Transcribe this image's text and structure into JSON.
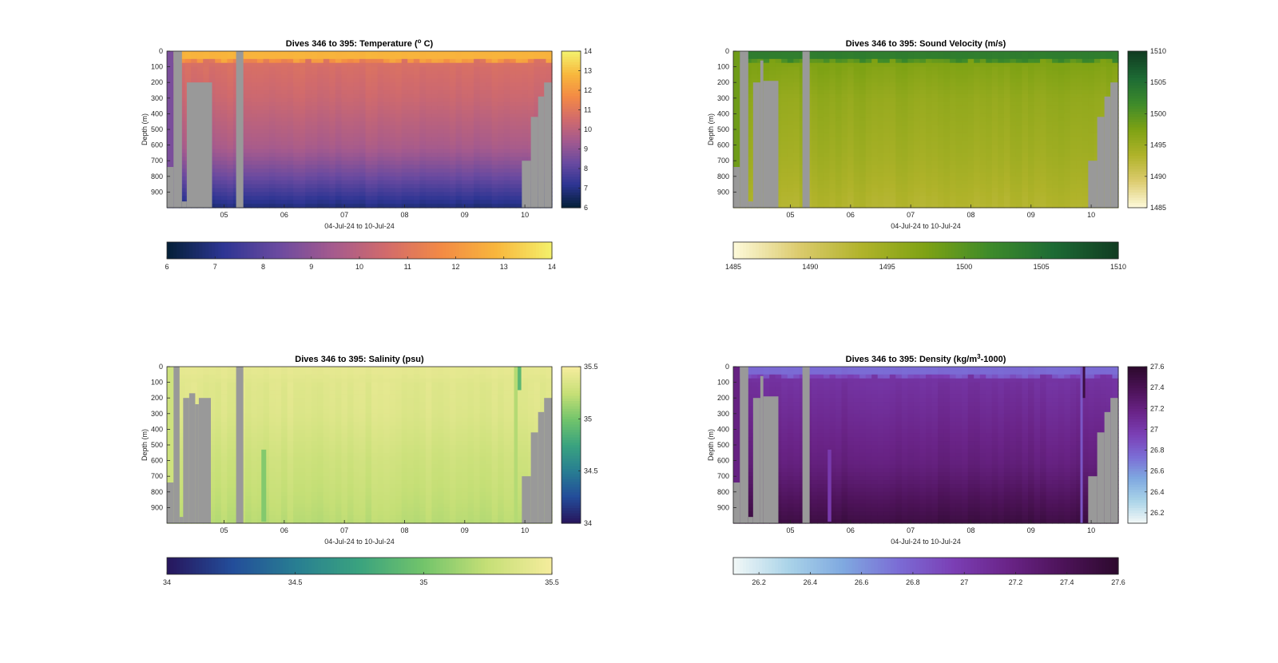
{
  "figure": {
    "colors": {
      "mask_gray": "#999999",
      "axis_color": "#262626"
    }
  },
  "chart_data": [
    {
      "type": "heatmap",
      "title_main": "Dives 346 to 395: Temperature (",
      "title_sup": "o",
      "title_tail": " C)",
      "ylabel": "Depth (m)",
      "xlabel": "04-Jul-24 to 10-Jul-24",
      "x_ticks": [
        "05",
        "06",
        "07",
        "08",
        "09",
        "10"
      ],
      "x_tick_pos": [
        5,
        6,
        7,
        8,
        9,
        10
      ],
      "xlim": [
        4.05,
        10.45
      ],
      "y_ticks": [
        "0",
        "100",
        "200",
        "300",
        "400",
        "500",
        "600",
        "700",
        "800",
        "900"
      ],
      "ylim": [
        0,
        1000
      ],
      "colormap": [
        "#05203a",
        "#2d3593",
        "#6a4aa0",
        "#a45a8e",
        "#d26b6b",
        "#f38a45",
        "#f8b63c",
        "#f4ef6a"
      ],
      "clim": [
        6,
        14
      ],
      "cb_vertical_ticks": [
        "6",
        "7",
        "8",
        "9",
        "10",
        "11",
        "12",
        "13",
        "14"
      ],
      "cb_horizontal_ticks": [
        "6",
        "7",
        "8",
        "9",
        "10",
        "11",
        "12",
        "13",
        "14"
      ],
      "profile": {
        "surface": 12.8,
        "mixed_layer": 50,
        "transition": 10.8,
        "at300": 10.4,
        "at600": 9.6,
        "at1000": 6.8
      },
      "nan_regions": [
        [
          4.16,
          4.3,
          0,
          1000
        ],
        [
          4.3,
          4.38,
          960,
          1000
        ],
        [
          4.38,
          4.8,
          200,
          1000
        ],
        [
          5.2,
          5.32,
          0,
          1000
        ],
        [
          9.95,
          10.1,
          700,
          1000
        ],
        [
          10.1,
          10.22,
          420,
          1000
        ],
        [
          10.22,
          10.32,
          290,
          1000
        ],
        [
          10.32,
          10.45,
          200,
          1000
        ]
      ],
      "edge_value_left": 8.6,
      "edge_nan_left": [
        4.05,
        4.16,
        740,
        1000
      ]
    },
    {
      "type": "heatmap",
      "title_main": "Dives 346 to 395: Sound Velocity (m/s)",
      "title_sup": "",
      "title_tail": "",
      "ylabel": "Depth (m)",
      "xlabel": "04-Jul-24 to 10-Jul-24",
      "x_ticks": [
        "05",
        "06",
        "07",
        "08",
        "09",
        "10"
      ],
      "x_tick_pos": [
        5,
        6,
        7,
        8,
        9,
        10
      ],
      "xlim": [
        4.05,
        10.45
      ],
      "y_ticks": [
        "0",
        "100",
        "200",
        "300",
        "400",
        "500",
        "600",
        "700",
        "800",
        "900"
      ],
      "ylim": [
        0,
        1000
      ],
      "colormap": [
        "#fdf9d8",
        "#dccb6e",
        "#b0b32a",
        "#7ea214",
        "#3e8b2a",
        "#1d6b34",
        "#113d22"
      ],
      "clim": [
        1485,
        1510
      ],
      "cb_vertical_ticks": [
        "1485",
        "1490",
        "1495",
        "1500",
        "1505",
        "1510"
      ],
      "cb_horizontal_ticks": [
        "1485",
        "1490",
        "1495",
        "1500",
        "1505",
        "1510"
      ],
      "profile": {
        "surface": 1503.5,
        "mixed_layer": 50,
        "transition": 1497.5,
        "at300": 1495.8,
        "at600": 1494.8,
        "at1000": 1493.0
      },
      "nan_regions": [
        [
          4.16,
          4.3,
          0,
          1000
        ],
        [
          4.3,
          4.38,
          960,
          1000
        ],
        [
          4.38,
          4.5,
          200,
          1000
        ],
        [
          4.5,
          4.55,
          60,
          1000
        ],
        [
          4.55,
          4.8,
          190,
          1000
        ],
        [
          5.2,
          5.32,
          0,
          1000
        ],
        [
          9.95,
          10.1,
          700,
          1000
        ],
        [
          10.1,
          10.22,
          420,
          1000
        ],
        [
          10.22,
          10.32,
          290,
          1000
        ],
        [
          10.32,
          10.45,
          200,
          1000
        ]
      ],
      "edge_value_left": 1498.5,
      "edge_nan_left": [
        4.05,
        4.16,
        740,
        1000
      ]
    },
    {
      "type": "heatmap",
      "title_main": "Dives 346 to 395: Salinity (psu)",
      "title_sup": "",
      "title_tail": "",
      "ylabel": "Depth (m)",
      "xlabel": "04-Jul-24 to 10-Jul-24",
      "x_ticks": [
        "05",
        "06",
        "07",
        "08",
        "09",
        "10"
      ],
      "x_tick_pos": [
        5,
        6,
        7,
        8,
        9,
        10
      ],
      "xlim": [
        4.05,
        10.45
      ],
      "y_ticks": [
        "0",
        "100",
        "200",
        "300",
        "400",
        "500",
        "600",
        "700",
        "800",
        "900"
      ],
      "ylim": [
        0,
        1000
      ],
      "colormap": [
        "#27175e",
        "#234d9a",
        "#287e92",
        "#3aa37f",
        "#72c46b",
        "#c5df76",
        "#f4ec9c"
      ],
      "clim": [
        34,
        35.5
      ],
      "cb_vertical_ticks": [
        "34",
        "34.5",
        "35",
        "35.5"
      ],
      "cb_vertical_vals": [
        34,
        34.5,
        35,
        35.5
      ],
      "cb_horizontal_ticks": [
        "34",
        "34.5",
        "35",
        "35.5"
      ],
      "cb_horizontal_vals": [
        34,
        34.5,
        35,
        35.5
      ],
      "profile": {
        "surface": 35.42,
        "mixed_layer": 50,
        "transition": 35.4,
        "at300": 35.38,
        "at600": 35.3,
        "at1000": 35.22
      },
      "nan_regions": [
        [
          4.16,
          4.26,
          0,
          1000
        ],
        [
          4.26,
          4.32,
          960,
          1000
        ],
        [
          4.32,
          4.42,
          200,
          1000
        ],
        [
          4.42,
          4.52,
          170,
          1000
        ],
        [
          4.52,
          4.58,
          240,
          1000
        ],
        [
          4.58,
          4.78,
          200,
          1000
        ],
        [
          5.2,
          5.32,
          0,
          1000
        ],
        [
          9.95,
          10.1,
          700,
          1000
        ],
        [
          10.1,
          10.22,
          420,
          1000
        ],
        [
          10.22,
          10.32,
          290,
          1000
        ],
        [
          10.32,
          10.45,
          200,
          1000
        ]
      ],
      "edge_value_left": 35.3,
      "edge_nan_left": [
        4.05,
        4.16,
        740,
        1000
      ],
      "anomaly_columns": [
        [
          5.62,
          5.7,
          530,
          990,
          35.05
        ],
        [
          9.82,
          9.88,
          0,
          1000,
          35.2
        ],
        [
          9.88,
          9.94,
          0,
          150,
          34.9
        ]
      ]
    },
    {
      "type": "heatmap",
      "title_main": "Dives 346 to 395: Density (kg/m",
      "title_sup": "3",
      "title_tail": "-1000)",
      "ylabel": "Depth (m)",
      "xlabel": "04-Jul-24 to 10-Jul-24",
      "x_ticks": [
        "05",
        "06",
        "07",
        "08",
        "09",
        "10"
      ],
      "x_tick_pos": [
        5,
        6,
        7,
        8,
        9,
        10
      ],
      "xlim": [
        4.05,
        10.45
      ],
      "y_ticks": [
        "0",
        "100",
        "200",
        "300",
        "400",
        "500",
        "600",
        "700",
        "800",
        "900"
      ],
      "ylim": [
        0,
        1000
      ],
      "colormap": [
        "#f0f7f7",
        "#a9d3e8",
        "#7fa8e0",
        "#7b6cd5",
        "#7b3fb5",
        "#6a2488",
        "#4d1359",
        "#2e0a2f"
      ],
      "clim": [
        26.1,
        27.6
      ],
      "cb_vertical_ticks": [
        "26.2",
        "26.4",
        "26.6",
        "26.8",
        "27",
        "27.2",
        "27.4",
        "27.6"
      ],
      "cb_vertical_vals": [
        26.2,
        26.4,
        26.6,
        26.8,
        27,
        27.2,
        27.4,
        27.6
      ],
      "cb_horizontal_ticks": [
        "26.2",
        "26.4",
        "26.6",
        "26.8",
        "27",
        "27.2",
        "27.4",
        "27.6"
      ],
      "cb_horizontal_vals": [
        26.2,
        26.4,
        26.6,
        26.8,
        27,
        27.2,
        27.4,
        27.6
      ],
      "profile": {
        "surface": 26.75,
        "mixed_layer": 50,
        "transition": 27.05,
        "at300": 27.12,
        "at600": 27.22,
        "at1000": 27.5
      },
      "nan_regions": [
        [
          4.16,
          4.3,
          0,
          1000
        ],
        [
          4.3,
          4.38,
          960,
          1000
        ],
        [
          4.38,
          4.5,
          200,
          1000
        ],
        [
          4.5,
          4.55,
          60,
          1000
        ],
        [
          4.55,
          4.8,
          190,
          1000
        ],
        [
          5.2,
          5.32,
          0,
          1000
        ],
        [
          9.95,
          10.1,
          700,
          1000
        ],
        [
          10.1,
          10.22,
          420,
          1000
        ],
        [
          10.22,
          10.32,
          290,
          1000
        ],
        [
          10.32,
          10.45,
          200,
          1000
        ]
      ],
      "edge_value_left": 27.2,
      "edge_nan_left": [
        4.05,
        4.16,
        740,
        1000
      ],
      "anomaly_columns": [
        [
          5.62,
          5.68,
          530,
          990,
          27.0
        ],
        [
          9.82,
          9.86,
          0,
          1000,
          26.85
        ],
        [
          9.86,
          9.9,
          0,
          200,
          27.5
        ]
      ]
    }
  ]
}
